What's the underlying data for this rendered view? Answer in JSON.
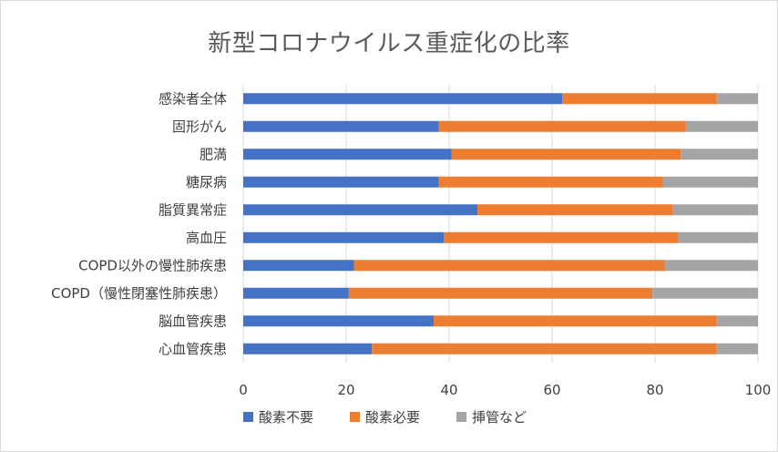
{
  "chart_data": {
    "type": "bar",
    "orientation": "horizontal",
    "stacked": true,
    "title": "新型コロナウイルス重症化の比率",
    "categories": [
      "感染者全体",
      "固形がん",
      "肥満",
      "糖尿病",
      "脂質異常症",
      "高血圧",
      "COPD以外の慢性肺疾患",
      "COPD（慢性閉塞性肺疾患）",
      "脳血管疾患",
      "心血管疾患"
    ],
    "series": [
      {
        "name": "酸素不要",
        "color": "#4472c4",
        "values": [
          62,
          38,
          40.5,
          38,
          45.5,
          39,
          21.5,
          20.5,
          37,
          25
        ]
      },
      {
        "name": "酸素必要",
        "color": "#ed7d31",
        "values": [
          30,
          48,
          44.5,
          43.5,
          38,
          45.5,
          60.5,
          59,
          55,
          67
        ]
      },
      {
        "name": "挿管など",
        "color": "#a5a5a5",
        "values": [
          8,
          14,
          15,
          18.5,
          16.5,
          15.5,
          18,
          20.5,
          8,
          8
        ]
      }
    ],
    "xlim": [
      0,
      100
    ],
    "xticks": [
      "0",
      "20",
      "40",
      "60",
      "80",
      "100"
    ],
    "xlabel": "",
    "ylabel": "",
    "grid": true,
    "legend_position": "bottom"
  }
}
